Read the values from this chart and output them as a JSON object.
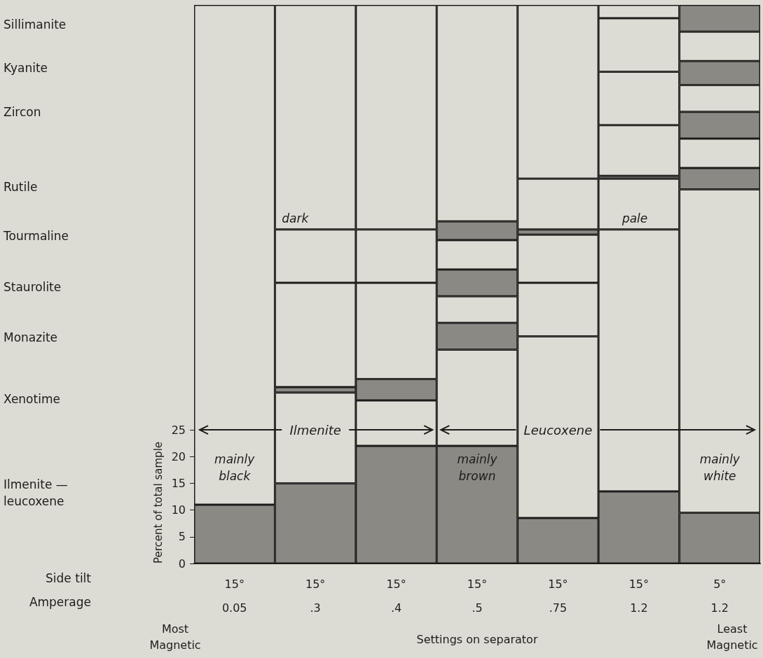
{
  "chart_data": {
    "type": "bar",
    "stacked": true,
    "xlabel": "Settings on separator",
    "ylabel": "Percent of total sample",
    "categories": [
      "15°\n0.05",
      "15°\n.3",
      "15°\n.4",
      "15°\n.5",
      "15°\n.75",
      "15°\n1.2",
      "5°\n1.2"
    ],
    "ylim": [
      0,
      104.5
    ],
    "yticks": [
      0,
      5,
      10,
      15,
      20,
      25
    ],
    "series": [
      {
        "values": [
          11,
          15,
          22,
          22,
          8.5,
          13.5,
          9.5
        ],
        "colors": [
          "#8a8984",
          "#8a8984",
          "#8a8984",
          "#8a8984",
          "#8a8984",
          "#8a8984",
          "#8a8984"
        ]
      },
      {
        "values": [
          93.5,
          17,
          8.5,
          18,
          34,
          49,
          60.5
        ],
        "colors": [
          "#dddcd4",
          "#dddcd4",
          "#dddcd4",
          "#dddcd4",
          "#dddcd4",
          "#dddcd4",
          "#dddcd4"
        ]
      },
      {
        "values": [
          null,
          1,
          4,
          5,
          10,
          9.5,
          4
        ],
        "colors": [
          null,
          "#8a8984",
          "#8a8984",
          "#8a8984",
          "#dddcd4",
          "#dddcd4",
          "#8a8984"
        ]
      },
      {
        "values": [
          null,
          19.5,
          18,
          5,
          9,
          0.5,
          5.5
        ],
        "colors": [
          null,
          "#dddcd4",
          "#dddcd4",
          "#dddcd4",
          "#dddcd4",
          "#8a8984",
          "#dddcd4"
        ]
      },
      {
        "values": [
          null,
          10,
          10,
          5,
          1,
          9.5,
          5
        ],
        "colors": [
          null,
          "#dddcd4",
          "#dddcd4",
          "#8a8984",
          "#8a8984",
          "#dddcd4",
          "#8a8984"
        ]
      },
      {
        "values": [
          null,
          42,
          42,
          5.5,
          9.5,
          10,
          5
        ],
        "colors": [
          null,
          "#dddcd4",
          "#dddcd4",
          "#dddcd4",
          "#dddcd4",
          "#dddcd4",
          "#dddcd4"
        ]
      },
      {
        "values": [
          null,
          null,
          null,
          3.5,
          32.5,
          10,
          4.5
        ],
        "colors": [
          null,
          null,
          null,
          "#8a8984",
          "#dddcd4",
          "#dddcd4",
          "#8a8984"
        ]
      },
      {
        "values": [
          null,
          null,
          null,
          40.5,
          null,
          2.5,
          5.5
        ],
        "colors": [
          null,
          null,
          null,
          "#dddcd4",
          null,
          "#dddcd4",
          "#dddcd4"
        ]
      },
      {
        "values": [
          null,
          null,
          null,
          null,
          null,
          null,
          5
        ],
        "colors": [
          null,
          null,
          null,
          null,
          null,
          null,
          "#8a8984"
        ]
      }
    ],
    "annotations": [
      "Side tilt",
      "Amperage",
      "Most\nMagnetic",
      "Least\nMagnetic",
      "dark",
      "pale",
      "Ilmenite",
      "Leucoxene",
      "mainly\nblack",
      "mainly\nbrown",
      "mainly\nwhite",
      "Sillimanite",
      "Kyanite",
      "Zircon",
      "Rutile",
      "Tourmaline",
      "Staurolite",
      "Monazite",
      "Xenotime",
      "Ilmenite —\nleucoxene"
    ]
  }
}
